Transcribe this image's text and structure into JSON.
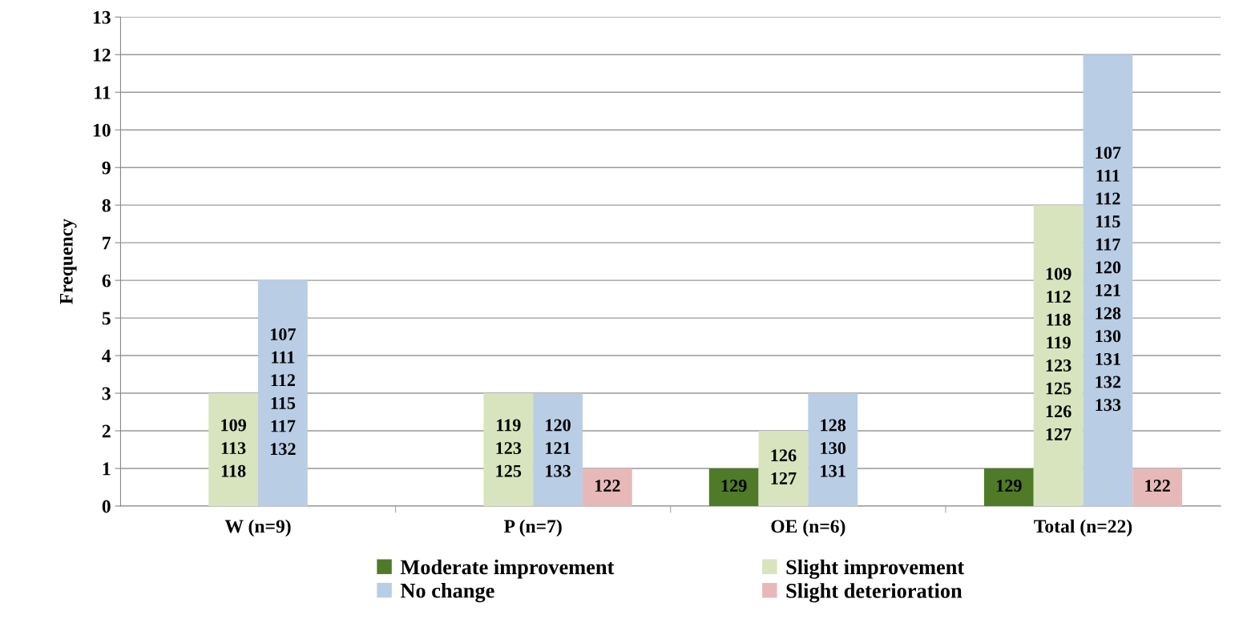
{
  "chart_data": {
    "type": "bar",
    "ylabel": "Frequency",
    "categories": [
      "W (n=9)",
      "P (n=7)",
      "OE (n=6)",
      "Total (n=22)"
    ],
    "series": [
      {
        "name": "Moderate improvement",
        "color": "#4f7a28",
        "values": [
          0,
          0,
          1,
          1
        ]
      },
      {
        "name": "Slight improvement",
        "color": "#d7e4bd",
        "values": [
          3,
          3,
          2,
          8
        ]
      },
      {
        "name": "No change",
        "color": "#b9cde5",
        "values": [
          6,
          3,
          3,
          12
        ]
      },
      {
        "name": "Slight deterioration",
        "color": "#e6b9b8",
        "values": [
          0,
          1,
          0,
          1
        ]
      }
    ],
    "annotations": [
      "109\n113\n118",
      "107\n111\n112\n115\n117\n132",
      "119\n123\n125",
      "120\n121\n133",
      "122",
      "129",
      "126\n127",
      "128\n130\n131",
      "129",
      "109\n112\n118\n119\n123\n125\n126\n127",
      "107\n111\n112\n115\n117\n120\n121\n128\n130\n131\n132\n133",
      "122"
    ],
    "ylim": [
      0,
      13
    ],
    "yticks": [
      0,
      1,
      2,
      3,
      4,
      5,
      6,
      7,
      8,
      9,
      10,
      11,
      12,
      13
    ],
    "grid": "y",
    "legend": "bottom"
  }
}
